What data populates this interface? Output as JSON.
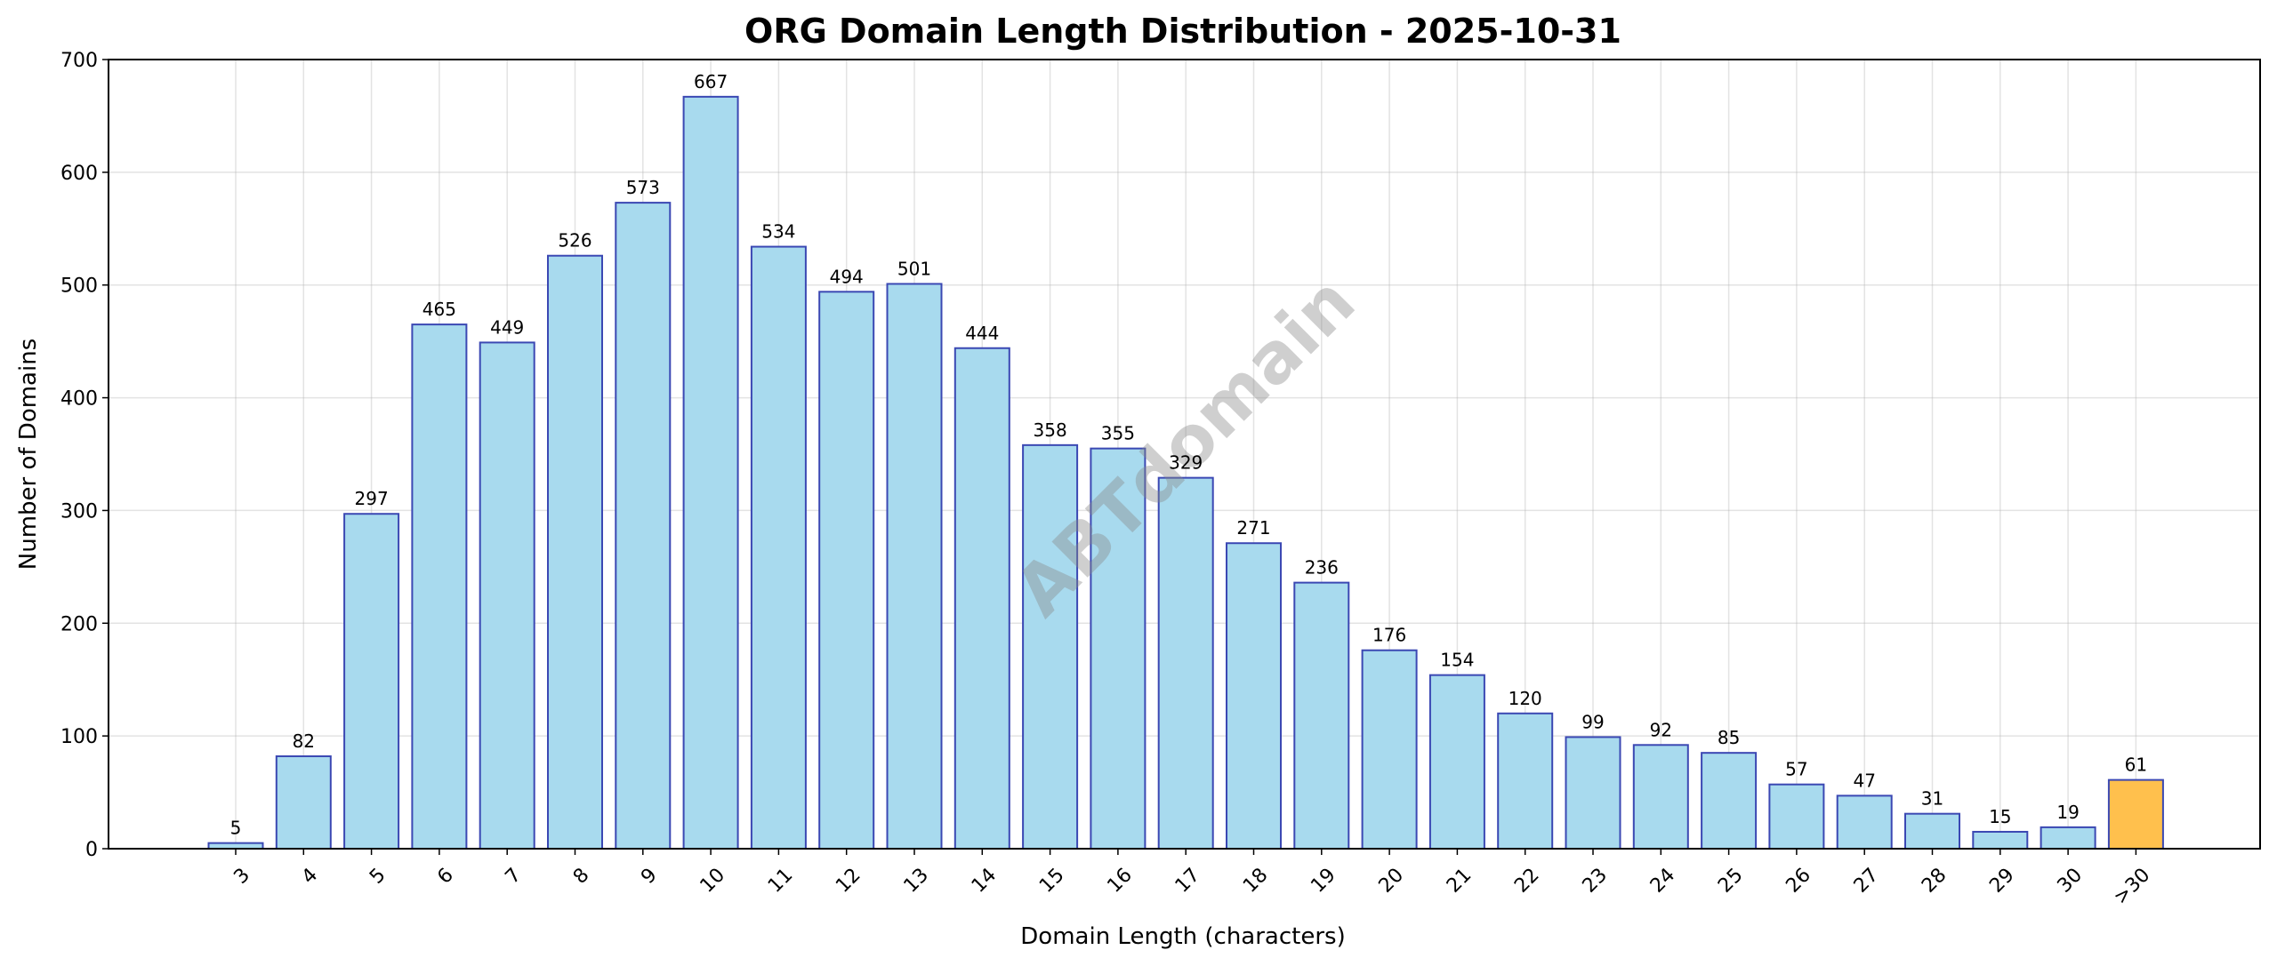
{
  "chart_data": {
    "type": "bar",
    "title": "ORG Domain Length Distribution - 2025-10-31",
    "xlabel": "Domain Length (characters)",
    "ylabel": "Number of Domains",
    "ylim": [
      0,
      700
    ],
    "yticks": [
      0,
      100,
      200,
      300,
      400,
      500,
      600,
      700
    ],
    "grid": true,
    "categories": [
      "3",
      "4",
      "5",
      "6",
      "7",
      "8",
      "9",
      "10",
      "11",
      "12",
      "13",
      "14",
      "15",
      "16",
      "17",
      "18",
      "19",
      "20",
      "21",
      "22",
      "23",
      "24",
      "25",
      "26",
      "27",
      "28",
      "29",
      "30",
      ">30"
    ],
    "values": [
      5,
      82,
      297,
      465,
      449,
      526,
      573,
      667,
      534,
      494,
      501,
      444,
      358,
      355,
      329,
      271,
      236,
      176,
      154,
      120,
      99,
      92,
      85,
      57,
      47,
      31,
      15,
      19,
      61
    ],
    "colors": {
      "bar": "#a8daee",
      "bar_edge": "#3b48b3",
      "highlight": "#ffc04d",
      "highlight_category": ">30"
    },
    "watermark": "ABTdomain"
  }
}
